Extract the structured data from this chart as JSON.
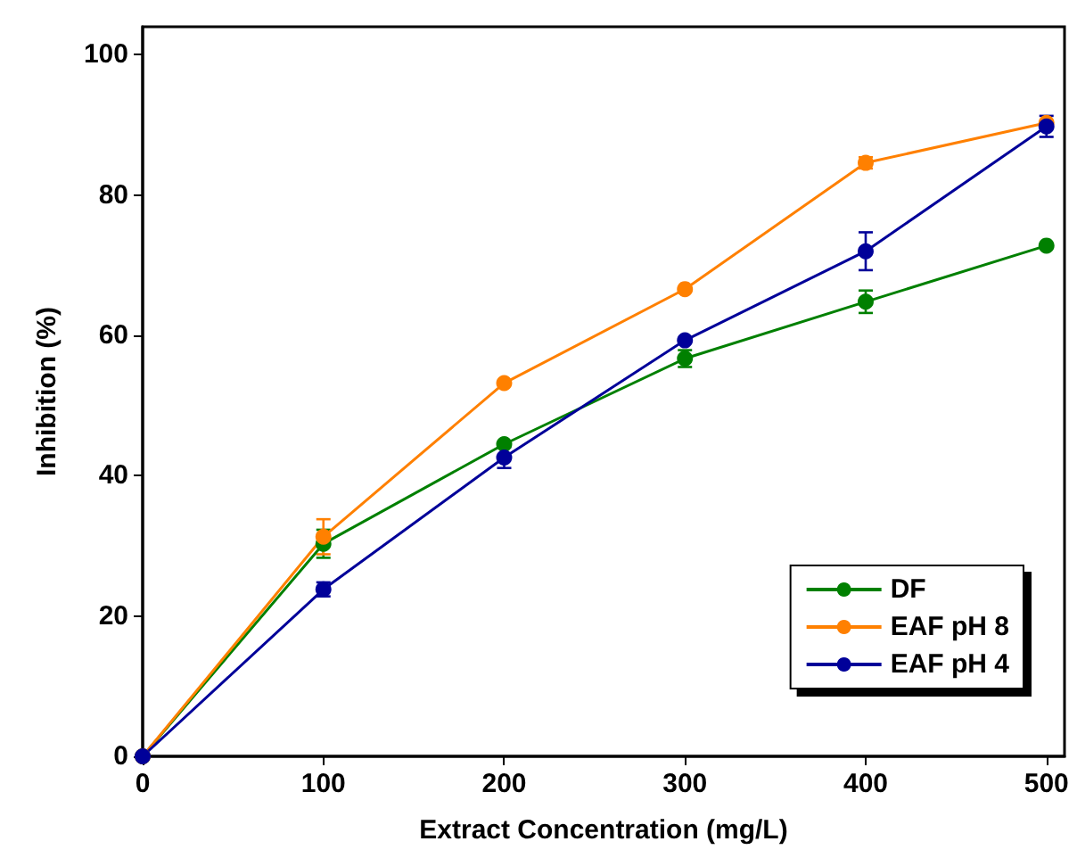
{
  "chart_data": {
    "type": "line",
    "xlabel": "Extract Concentration (mg/L)",
    "ylabel": "Inhibition (%)",
    "x": [
      0,
      100,
      200,
      300,
      400,
      500
    ],
    "series": [
      {
        "name": "DF",
        "color": "#008000",
        "values": [
          0,
          30.3,
          44.5,
          56.7,
          64.8,
          72.8
        ],
        "errors": [
          null,
          2,
          null,
          1.2,
          1.6,
          null
        ]
      },
      {
        "name": "EAF pH 8",
        "color": "#ff8000",
        "values": [
          0,
          31.3,
          53.2,
          66.6,
          84.6,
          90.3
        ],
        "errors": [
          null,
          2.5,
          null,
          null,
          0.8,
          null
        ]
      },
      {
        "name": "EAF pH 4",
        "color": "#000099",
        "values": [
          0,
          23.8,
          42.6,
          59.3,
          72,
          89.8
        ],
        "errors": [
          null,
          1,
          1.5,
          null,
          2.7,
          1.5
        ]
      }
    ],
    "xlim": [
      0,
      510
    ],
    "xticks": [
      0,
      100,
      200,
      300,
      400,
      500
    ],
    "ylim": [
      0,
      104
    ],
    "yticks": [
      0,
      20,
      40,
      60,
      80,
      100
    ],
    "grid": false,
    "legend": "bottom right",
    "marker": "circle",
    "line_style": "solid"
  }
}
